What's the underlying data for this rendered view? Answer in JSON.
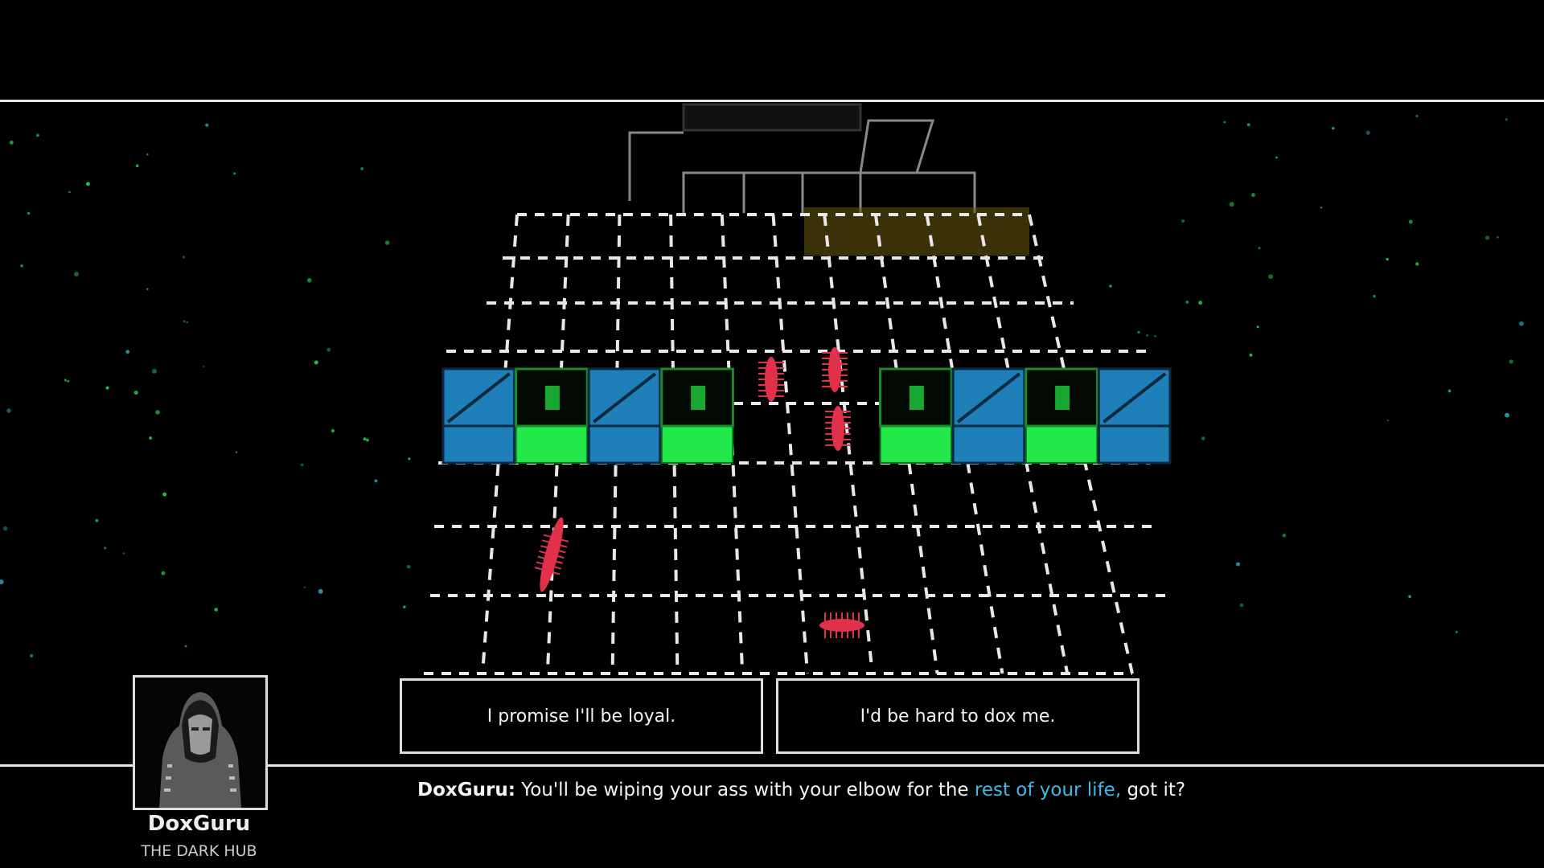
{
  "dialogue": {
    "speaker": "DoxGuru:",
    "text_before": " You'll be wiping your ass with your elbow for the ",
    "highlight": "rest of your life,",
    "text_after": " got it?",
    "highlight_color": "#3db8e8"
  },
  "npc": {
    "name": "DoxGuru",
    "location": "THE DARK HUB",
    "portrait_icon": "hooded-masked-figure"
  },
  "choices": [
    {
      "label": "I promise I'll be loyal."
    },
    {
      "label": "I'd be hard to dox me."
    }
  ],
  "scene": {
    "crate_row": [
      "blue-crate",
      "green-tower-block",
      "blue-crate",
      "green-tower-block",
      "empty",
      "empty",
      "green-tower-block",
      "blue-crate",
      "green-tower-block",
      "blue-crate"
    ],
    "colors": {
      "crate_blue": "#1f7fb8",
      "block_green": "#22e84a",
      "enemy_red": "#e0304a",
      "grid": "#e8e8e8"
    }
  }
}
